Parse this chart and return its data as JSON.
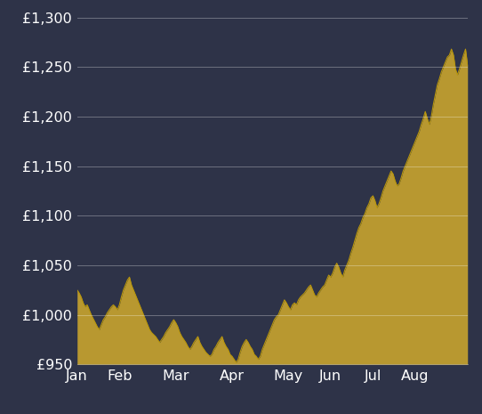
{
  "background_color": "#2e3348",
  "plot_bg_color": "#2e3348",
  "line_color": "#b8960c",
  "fill_color": "#b89830",
  "fill_alpha": 1.0,
  "grid_color": "#ffffff",
  "grid_alpha": 0.3,
  "tick_color": "#ffffff",
  "label_color": "#ffffff",
  "ylim": [
    950,
    1305
  ],
  "yticks": [
    950,
    1000,
    1050,
    1100,
    1150,
    1200,
    1250,
    1300
  ],
  "font_size": 11.5,
  "xlabel_labels": [
    "Jan",
    "Feb",
    "Mar",
    "Apr",
    "May",
    "Jun",
    "Jul",
    "Aug"
  ],
  "values": [
    1025,
    1022,
    1018,
    1012,
    1008,
    1010,
    1005,
    1000,
    996,
    992,
    988,
    985,
    990,
    995,
    998,
    1002,
    1005,
    1008,
    1010,
    1008,
    1005,
    1010,
    1018,
    1025,
    1030,
    1035,
    1038,
    1030,
    1025,
    1020,
    1015,
    1010,
    1005,
    1000,
    995,
    990,
    985,
    982,
    980,
    978,
    975,
    972,
    975,
    978,
    982,
    985,
    988,
    992,
    995,
    992,
    988,
    982,
    978,
    975,
    972,
    968,
    965,
    968,
    972,
    975,
    978,
    972,
    968,
    965,
    962,
    960,
    958,
    960,
    965,
    968,
    972,
    975,
    978,
    972,
    968,
    965,
    960,
    958,
    955,
    952,
    955,
    962,
    968,
    972,
    975,
    972,
    968,
    965,
    960,
    958,
    955,
    958,
    965,
    970,
    975,
    980,
    985,
    990,
    995,
    998,
    1000,
    1005,
    1010,
    1015,
    1012,
    1008,
    1005,
    1010,
    1012,
    1010,
    1015,
    1018,
    1020,
    1022,
    1025,
    1028,
    1030,
    1025,
    1020,
    1018,
    1022,
    1025,
    1028,
    1030,
    1035,
    1040,
    1038,
    1042,
    1048,
    1052,
    1048,
    1042,
    1038,
    1045,
    1050,
    1055,
    1062,
    1068,
    1075,
    1082,
    1088,
    1092,
    1098,
    1102,
    1108,
    1112,
    1118,
    1120,
    1115,
    1108,
    1112,
    1118,
    1125,
    1130,
    1135,
    1140,
    1145,
    1142,
    1135,
    1130,
    1132,
    1138,
    1145,
    1150,
    1155,
    1160,
    1165,
    1170,
    1175,
    1180,
    1185,
    1192,
    1198,
    1205,
    1198,
    1192,
    1200,
    1212,
    1222,
    1232,
    1238,
    1245,
    1250,
    1255,
    1260,
    1262,
    1268,
    1262,
    1248,
    1242,
    1248,
    1255,
    1262,
    1268,
    1252
  ],
  "month_day_starts": [
    0,
    21,
    49,
    77,
    105,
    126,
    147,
    168
  ]
}
